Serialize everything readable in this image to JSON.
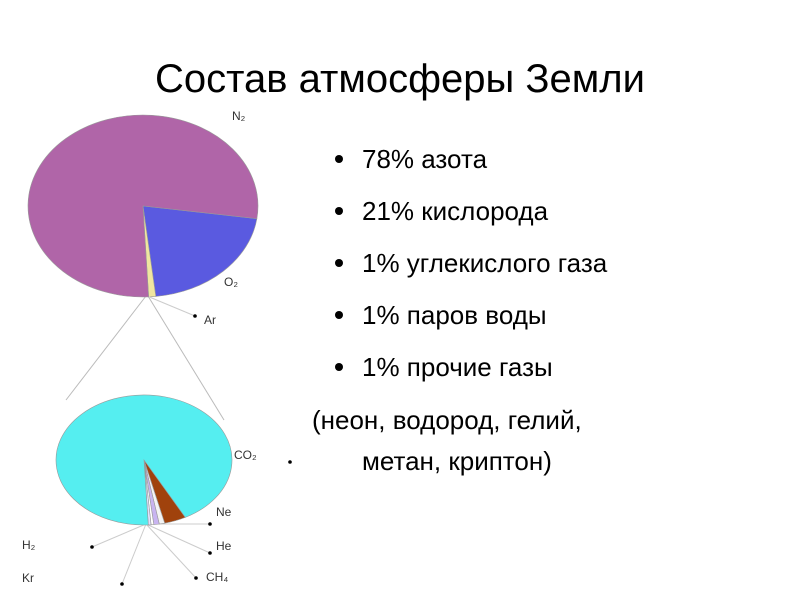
{
  "title": "Состав атмосферы Земли",
  "bullets": [
    "78% азота",
    "21% кислорода",
    "1% углекислого газа",
    "1% паров воды",
    "1% прочие газы"
  ],
  "note": [
    "(неон, водород, гелий,",
    "метан, криптон)"
  ],
  "pies": [
    {
      "slices": [
        {
          "label": "O₂",
          "value": 21,
          "color": "#5a5ae0"
        },
        {
          "label": "Ar",
          "value": 1,
          "color": "#f0e6a0"
        },
        {
          "label": "N₂",
          "value": 78,
          "color": "#b065a8"
        }
      ]
    },
    {
      "slices": [
        {
          "label": "Ne",
          "value": 4,
          "color": "#a0420c"
        },
        {
          "label": "He",
          "value": 1,
          "color": "#f4f4f4"
        },
        {
          "label": "CH₄",
          "value": 1,
          "color": "#c8b4f0"
        },
        {
          "label": "Kr",
          "value": 0.5,
          "color": "#ffffff"
        },
        {
          "label": "H₂",
          "value": 0.5,
          "color": "#e0e0ff"
        },
        {
          "label": "CO₂",
          "value": 93,
          "color": "#55eef0"
        }
      ]
    }
  ]
}
